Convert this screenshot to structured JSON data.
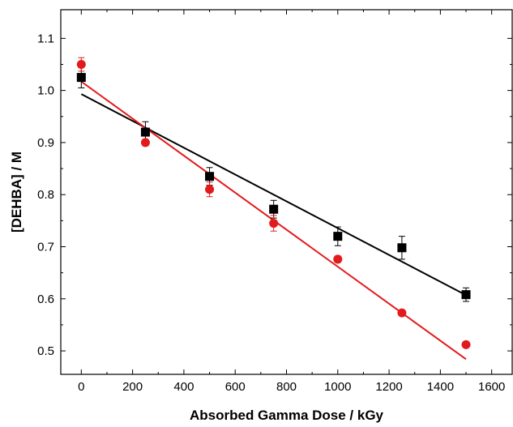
{
  "chart_data": {
    "type": "scatter",
    "title": "",
    "xlabel": "Absorbed Gamma Dose / kGy",
    "ylabel": "[DEHBA] / M",
    "xlim": [
      -80,
      1680
    ],
    "ylim": [
      0.455,
      1.155
    ],
    "x_ticks": [
      0,
      200,
      400,
      600,
      800,
      1000,
      1200,
      1400,
      1600
    ],
    "x_tick_labels": [
      "0",
      "200",
      "400",
      "600",
      "800",
      "1000",
      "1200",
      "1400",
      "1600"
    ],
    "y_ticks": [
      0.5,
      0.6,
      0.7,
      0.8,
      0.9,
      1.0,
      1.1
    ],
    "y_tick_labels": [
      "0.5",
      "0.6",
      "0.7",
      "0.8",
      "0.9",
      "1.0",
      "1.1"
    ],
    "grid": false,
    "legend": "none",
    "series": [
      {
        "marker": "square",
        "color": "#000000",
        "x": [
          0,
          250,
          500,
          750,
          1000,
          1250,
          1500
        ],
        "y": [
          1.025,
          0.92,
          0.835,
          0.772,
          0.72,
          0.698,
          0.608
        ],
        "err": [
          0.02,
          0.02,
          0.017,
          0.017,
          0.018,
          0.022,
          0.013
        ],
        "fit": {
          "x": [
            0,
            1500
          ],
          "y": [
            0.993,
            0.607
          ]
        }
      },
      {
        "marker": "circle",
        "color": "#e31a1c",
        "x": [
          0,
          250,
          500,
          750,
          1000,
          1250,
          1500
        ],
        "y": [
          1.05,
          0.9,
          0.81,
          0.745,
          0.676,
          0.573,
          0.512
        ],
        "err": [
          0.013,
          0.006,
          0.014,
          0.015,
          0.006,
          0.005,
          0.004
        ],
        "fit": {
          "x": [
            0,
            1500
          ],
          "y": [
            1.017,
            0.484
          ]
        }
      }
    ]
  }
}
